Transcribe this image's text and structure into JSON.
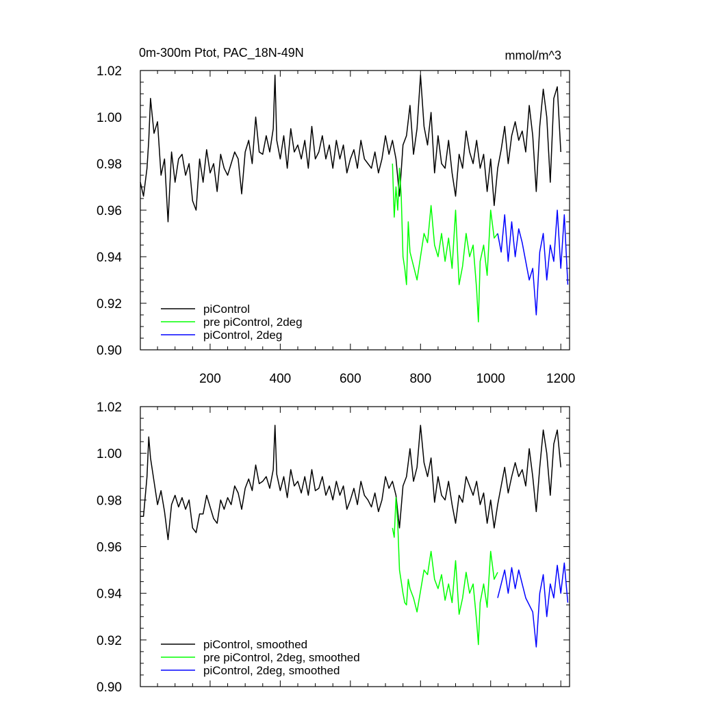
{
  "figure": {
    "title_left": "0m-300m Ptot, PAC_18N-49N",
    "title_right": "mmol/m^3"
  },
  "chart_data": [
    {
      "type": "line",
      "panel": "top",
      "xlim": [
        1,
        1225
      ],
      "ylim": [
        0.9,
        1.02
      ],
      "xticks": [
        200,
        400,
        600,
        800,
        1000,
        1200
      ],
      "xtick_labels": [
        "200",
        "400",
        "600",
        "800",
        "1000",
        "1200"
      ],
      "yticks": [
        0.9,
        0.92,
        0.94,
        0.96,
        0.98,
        1.0,
        1.02
      ],
      "ytick_labels": [
        "0.90",
        "0.92",
        "0.94",
        "0.96",
        "0.98",
        "1.00",
        "1.02"
      ],
      "legend_position": "bottom-left",
      "series": [
        {
          "name": "piControl",
          "color": "#000000",
          "x": [
            1,
            10,
            20,
            25,
            30,
            40,
            50,
            60,
            70,
            80,
            90,
            100,
            110,
            120,
            130,
            140,
            150,
            160,
            170,
            180,
            190,
            200,
            210,
            220,
            230,
            240,
            250,
            260,
            270,
            280,
            290,
            300,
            310,
            320,
            330,
            340,
            350,
            360,
            370,
            380,
            385,
            390,
            400,
            410,
            420,
            430,
            440,
            450,
            460,
            470,
            480,
            490,
            500,
            510,
            520,
            530,
            540,
            550,
            560,
            570,
            580,
            590,
            600,
            610,
            620,
            630,
            640,
            650,
            660,
            670,
            680,
            690,
            700,
            710,
            720,
            730,
            740,
            750,
            760,
            770,
            780,
            790,
            800,
            810,
            820,
            830,
            840,
            850,
            860,
            870,
            880,
            890,
            900,
            910,
            920,
            930,
            940,
            950,
            960,
            970,
            980,
            990,
            1000,
            1010,
            1020,
            1030,
            1040,
            1050,
            1060,
            1070,
            1080,
            1090,
            1100,
            1110,
            1120,
            1130,
            1140,
            1150,
            1160,
            1170,
            1180,
            1190,
            1200
          ],
          "y": [
            0.972,
            0.966,
            0.978,
            0.99,
            1.008,
            0.993,
            0.998,
            0.975,
            0.982,
            0.955,
            0.985,
            0.972,
            0.982,
            0.984,
            0.975,
            0.98,
            0.964,
            0.96,
            0.982,
            0.972,
            0.986,
            0.976,
            0.98,
            0.968,
            0.984,
            0.978,
            0.975,
            0.98,
            0.985,
            0.982,
            0.967,
            0.985,
            0.99,
            0.98,
            1.0,
            0.985,
            0.984,
            0.992,
            0.985,
            0.995,
            1.018,
            0.99,
            0.982,
            0.992,
            0.978,
            0.995,
            0.985,
            0.988,
            0.982,
            0.99,
            0.978,
            0.996,
            0.982,
            0.985,
            0.992,
            0.982,
            0.988,
            0.978,
            0.99,
            0.982,
            0.988,
            0.976,
            0.982,
            0.986,
            0.978,
            0.99,
            0.982,
            0.98,
            0.978,
            0.985,
            0.976,
            0.982,
            0.992,
            0.984,
            0.99,
            0.982,
            0.966,
            0.988,
            0.992,
            1.005,
            0.984,
            0.995,
            1.018,
            0.996,
            0.988,
            1.002,
            0.976,
            0.992,
            0.98,
            0.978,
            0.99,
            0.976,
            0.966,
            0.984,
            0.978,
            0.994,
            0.985,
            0.98,
            0.99,
            0.978,
            0.984,
            0.968,
            0.982,
            0.962,
            0.978,
            0.986,
            0.996,
            0.98,
            0.992,
            0.998,
            0.99,
            0.994,
            0.985,
            1.005,
            0.992,
            0.968,
            0.996,
            1.012,
            1.0,
            0.972,
            1.008,
            1.013,
            0.985
          ]
        },
        {
          "name": "pre piControl, 2deg",
          "color": "#00ff00",
          "x": [
            720,
            725,
            730,
            735,
            740,
            745,
            750,
            755,
            760,
            765,
            770,
            780,
            790,
            800,
            810,
            820,
            830,
            840,
            850,
            860,
            870,
            880,
            890,
            900,
            910,
            920,
            930,
            940,
            950,
            960,
            965,
            970,
            980,
            990,
            1000,
            1010,
            1020
          ],
          "y": [
            0.98,
            0.957,
            0.97,
            0.96,
            0.978,
            0.966,
            0.94,
            0.935,
            0.928,
            0.955,
            0.942,
            0.936,
            0.93,
            0.94,
            0.95,
            0.946,
            0.962,
            0.945,
            0.94,
            0.95,
            0.938,
            0.948,
            0.935,
            0.96,
            0.928,
            0.936,
            0.95,
            0.94,
            0.945,
            0.926,
            0.912,
            0.938,
            0.945,
            0.932,
            0.96,
            0.948,
            0.95
          ]
        },
        {
          "name": "piControl, 2deg",
          "color": "#0000ff",
          "x": [
            1020,
            1030,
            1040,
            1050,
            1060,
            1070,
            1080,
            1090,
            1100,
            1110,
            1120,
            1130,
            1140,
            1150,
            1160,
            1170,
            1180,
            1190,
            1200,
            1210,
            1220
          ],
          "y": [
            0.95,
            0.942,
            0.958,
            0.938,
            0.955,
            0.94,
            0.952,
            0.946,
            0.938,
            0.93,
            0.935,
            0.915,
            0.942,
            0.95,
            0.93,
            0.945,
            0.938,
            0.96,
            0.935,
            0.958,
            0.928
          ]
        }
      ]
    },
    {
      "type": "line",
      "panel": "bottom",
      "xlim": [
        1,
        1225
      ],
      "ylim": [
        0.9,
        1.02
      ],
      "xticks": [
        200,
        400,
        600,
        800,
        1000,
        1200
      ],
      "xtick_labels": [],
      "yticks": [
        0.9,
        0.92,
        0.94,
        0.96,
        0.98,
        1.0,
        1.02
      ],
      "ytick_labels": [
        "0.90",
        "0.92",
        "0.94",
        "0.96",
        "0.98",
        "1.00",
        "1.02"
      ],
      "legend_position": "bottom-left",
      "series": [
        {
          "name": "piControl, smoothed",
          "color": "#000000",
          "x": [
            1,
            10,
            20,
            25,
            30,
            40,
            50,
            60,
            70,
            80,
            90,
            100,
            110,
            120,
            130,
            140,
            150,
            160,
            170,
            180,
            190,
            200,
            210,
            220,
            230,
            240,
            250,
            260,
            270,
            280,
            290,
            300,
            310,
            320,
            330,
            340,
            350,
            360,
            370,
            380,
            385,
            390,
            400,
            410,
            420,
            430,
            440,
            450,
            460,
            470,
            480,
            490,
            500,
            510,
            520,
            530,
            540,
            550,
            560,
            570,
            580,
            590,
            600,
            610,
            620,
            630,
            640,
            650,
            660,
            670,
            680,
            690,
            700,
            710,
            720,
            730,
            740,
            750,
            760,
            770,
            780,
            790,
            800,
            810,
            820,
            830,
            840,
            850,
            860,
            870,
            880,
            890,
            900,
            910,
            920,
            930,
            940,
            950,
            960,
            970,
            980,
            990,
            1000,
            1010,
            1020,
            1030,
            1040,
            1050,
            1060,
            1070,
            1080,
            1090,
            1100,
            1110,
            1120,
            1130,
            1140,
            1150,
            1160,
            1170,
            1180,
            1190,
            1200
          ],
          "y": [
            0.973,
            0.973,
            0.99,
            1.007,
            0.998,
            0.988,
            0.978,
            0.984,
            0.975,
            0.963,
            0.978,
            0.982,
            0.977,
            0.981,
            0.976,
            0.98,
            0.968,
            0.966,
            0.974,
            0.974,
            0.982,
            0.977,
            0.972,
            0.97,
            0.98,
            0.976,
            0.981,
            0.978,
            0.986,
            0.983,
            0.976,
            0.985,
            0.989,
            0.984,
            0.995,
            0.987,
            0.988,
            0.99,
            0.985,
            0.993,
            1.012,
            0.991,
            0.984,
            0.99,
            0.981,
            0.993,
            0.986,
            0.988,
            0.983,
            0.99,
            0.982,
            0.993,
            0.984,
            0.985,
            0.99,
            0.982,
            0.986,
            0.98,
            0.988,
            0.982,
            0.986,
            0.976,
            0.98,
            0.985,
            0.978,
            0.988,
            0.982,
            0.98,
            0.977,
            0.983,
            0.975,
            0.98,
            0.99,
            0.985,
            0.988,
            0.982,
            0.968,
            0.986,
            0.99,
            1.002,
            0.988,
            0.994,
            1.012,
            0.996,
            0.99,
            0.998,
            0.979,
            0.99,
            0.982,
            0.98,
            0.988,
            0.978,
            0.97,
            0.982,
            0.979,
            0.99,
            0.986,
            0.982,
            0.988,
            0.978,
            0.983,
            0.97,
            0.98,
            0.968,
            0.978,
            0.986,
            0.994,
            0.983,
            0.99,
            0.996,
            0.99,
            0.993,
            0.986,
            1.002,
            0.99,
            0.975,
            0.994,
            1.01,
            1.0,
            0.982,
            1.004,
            1.01,
            0.994
          ]
        },
        {
          "name": "pre piControl, 2deg, smoothed",
          "color": "#00ff00",
          "x": [
            720,
            725,
            730,
            735,
            740,
            745,
            750,
            755,
            760,
            765,
            770,
            780,
            790,
            800,
            810,
            820,
            830,
            840,
            850,
            860,
            870,
            880,
            890,
            900,
            910,
            920,
            930,
            940,
            950,
            960,
            965,
            970,
            980,
            990,
            1000,
            1010,
            1020
          ],
          "y": [
            0.968,
            0.964,
            0.981,
            0.97,
            0.95,
            0.945,
            0.94,
            0.936,
            0.935,
            0.946,
            0.942,
            0.938,
            0.932,
            0.941,
            0.95,
            0.948,
            0.958,
            0.946,
            0.942,
            0.948,
            0.937,
            0.944,
            0.936,
            0.954,
            0.931,
            0.938,
            0.949,
            0.94,
            0.944,
            0.928,
            0.918,
            0.936,
            0.944,
            0.934,
            0.958,
            0.946,
            0.949
          ]
        },
        {
          "name": "piControl, 2deg, smoothed",
          "color": "#0000ff",
          "x": [
            1020,
            1030,
            1040,
            1050,
            1060,
            1070,
            1080,
            1090,
            1100,
            1110,
            1120,
            1130,
            1140,
            1150,
            1160,
            1170,
            1180,
            1190,
            1200,
            1210,
            1220
          ],
          "y": [
            0.938,
            0.944,
            0.95,
            0.94,
            0.951,
            0.942,
            0.95,
            0.944,
            0.938,
            0.935,
            0.932,
            0.917,
            0.94,
            0.948,
            0.93,
            0.944,
            0.938,
            0.952,
            0.94,
            0.953,
            0.936
          ]
        }
      ]
    }
  ]
}
